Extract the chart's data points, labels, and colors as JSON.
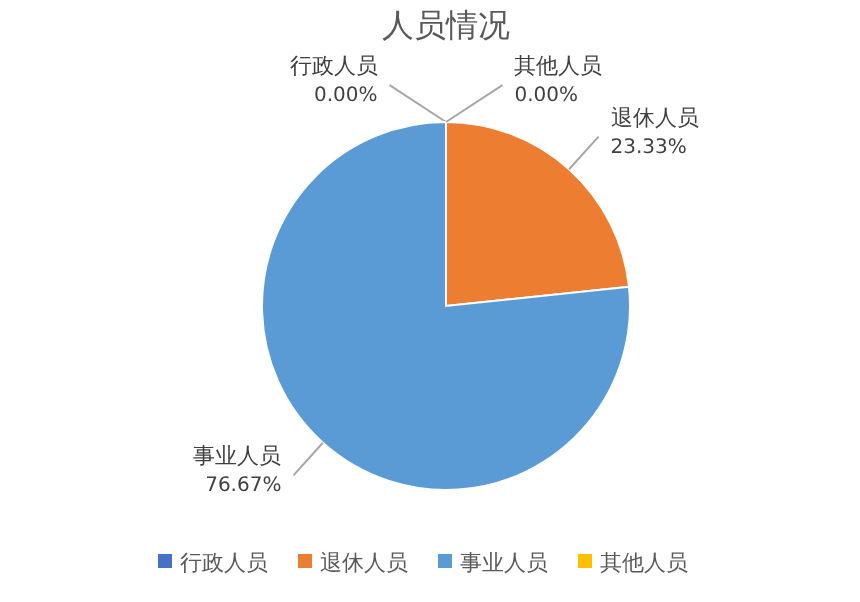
{
  "chart_data": {
    "type": "pie",
    "title": "人员情况",
    "categories": [
      "行政人员",
      "退休人员",
      "事业人员",
      "其他人员"
    ],
    "values": [
      0,
      23.33,
      76.67,
      0
    ],
    "colors": [
      "#4472c4",
      "#ed7d31",
      "#5b9bd5",
      "#ffc000"
    ],
    "value_labels": [
      "0.00%",
      "23.33%",
      "76.67%",
      "0.00%"
    ],
    "legend": "bottom"
  }
}
